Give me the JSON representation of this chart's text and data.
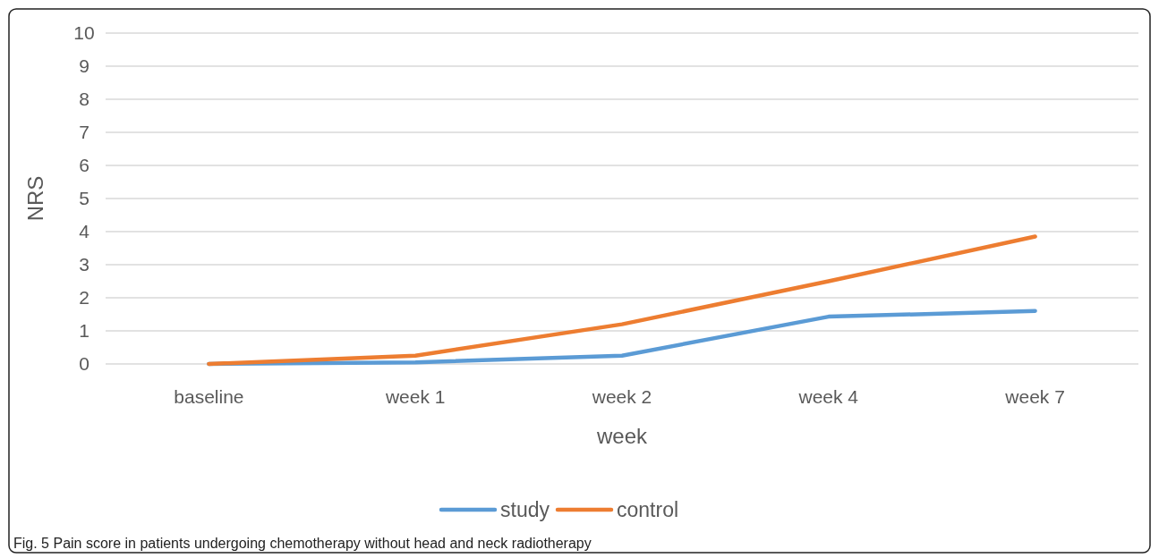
{
  "chart_data": {
    "type": "line",
    "xlabel": "week",
    "ylabel": "NRS",
    "categories": [
      "baseline",
      "week 1",
      "week 2",
      "week 4",
      "week 7"
    ],
    "series": [
      {
        "name": "study",
        "color": "#5b9bd5",
        "values": [
          0,
          0.05,
          0.25,
          1.43,
          1.6
        ]
      },
      {
        "name": "control",
        "color": "#ed7d31",
        "values": [
          0,
          0.25,
          1.2,
          2.5,
          3.85
        ]
      }
    ],
    "ylim": [
      0,
      10
    ],
    "yticks": [
      0,
      1,
      2,
      3,
      4,
      5,
      6,
      7,
      8,
      9,
      10
    ],
    "grid": "y",
    "legend": "bottom",
    "marker": "none",
    "line_style": "solid",
    "annotations": [
      "Fig. 5 Pain score in patients undergoing chemotherapy without head and neck radiotherapy"
    ]
  }
}
